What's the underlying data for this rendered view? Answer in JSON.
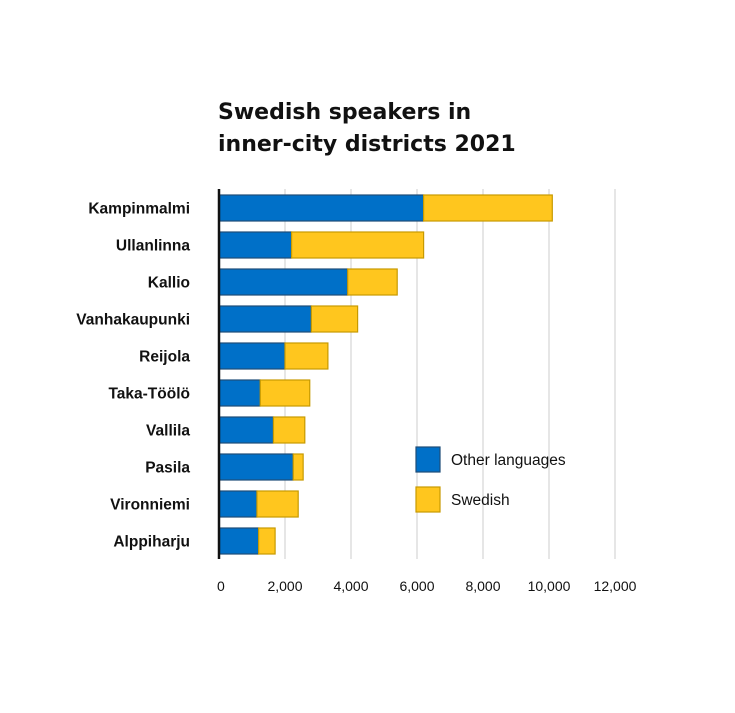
{
  "chart_data": {
    "type": "bar",
    "orientation": "horizontal",
    "stacked": true,
    "title": [
      "Swedish speakers in",
      "inner-city districts 2021"
    ],
    "xlabel": "",
    "ylabel": "",
    "xlim": [
      0,
      12000
    ],
    "grid": true,
    "x_ticks": [
      0,
      2000,
      4000,
      6000,
      8000,
      10000,
      12000
    ],
    "x_tick_labels": [
      "0",
      "2,000",
      "4,000",
      "6,000",
      "8,000",
      "10,000",
      "12,000"
    ],
    "categories": [
      "Kampinmalmi",
      "Ullanlinna",
      "Kallio",
      "Vanhakaupunki",
      "Reijola",
      "Taka-Töölö",
      "Vallila",
      "Pasila",
      "Vironniemi",
      "Alppiharju"
    ],
    "series": [
      {
        "name": "Other languages",
        "color": "#0070c8",
        "border": "#1f4e79",
        "values": [
          6200,
          2200,
          3900,
          2800,
          2000,
          1250,
          1650,
          2250,
          1150,
          1200
        ]
      },
      {
        "name": "Swedish",
        "color": "#ffc61e",
        "border": "#c79a00",
        "values": [
          3900,
          4000,
          1500,
          1400,
          1300,
          1500,
          950,
          300,
          1250,
          500
        ]
      }
    ],
    "legend": {
      "position": "bottom-right",
      "entries": [
        "Other languages",
        "Swedish"
      ]
    }
  }
}
